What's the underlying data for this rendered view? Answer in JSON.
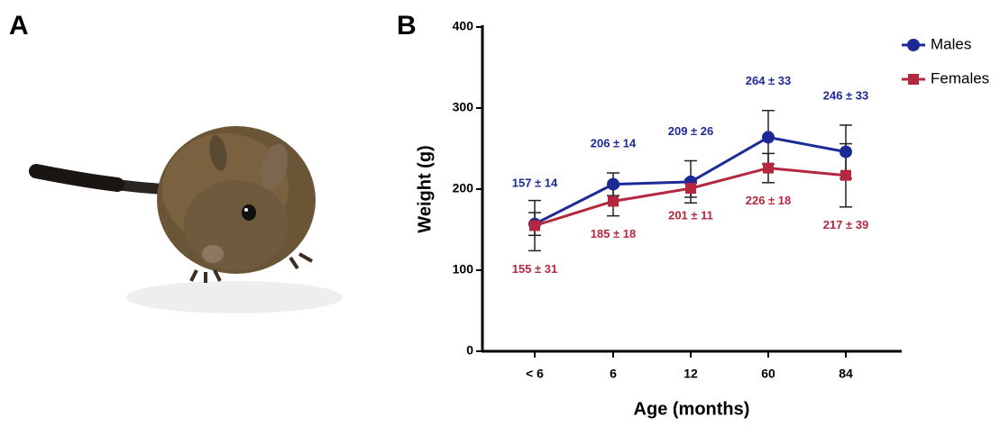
{
  "panel_a": {
    "label": "A"
  },
  "chart_data": {
    "type": "line",
    "panel_label": "B",
    "x_label": "Age (months)",
    "y_label": "Weight (g)",
    "categories": [
      "< 6",
      "6",
      "12",
      "60",
      "84"
    ],
    "ylim": [
      0,
      400
    ],
    "yticks": [
      0,
      100,
      200,
      300,
      400
    ],
    "grid": false,
    "legend": "top-right",
    "series": [
      {
        "name": "Males",
        "color": "#1c2a96",
        "marker": "circle",
        "values": [
          157,
          206,
          209,
          264,
          246
        ],
        "errors": [
          14,
          14,
          26,
          33,
          33
        ],
        "value_labels": [
          "157 ± 14",
          "206 ± 14",
          "209 ± 26",
          "264 ± 33",
          "246 ± 33"
        ]
      },
      {
        "name": "Females",
        "color": "#b3283e",
        "marker": "square",
        "values": [
          155,
          185,
          201,
          226,
          217
        ],
        "errors": [
          31,
          18,
          11,
          18,
          39
        ],
        "value_labels": [
          "155 ± 31",
          "185 ± 18",
          "201 ± 11",
          "226 ± 18",
          "217 ± 39"
        ]
      }
    ]
  }
}
